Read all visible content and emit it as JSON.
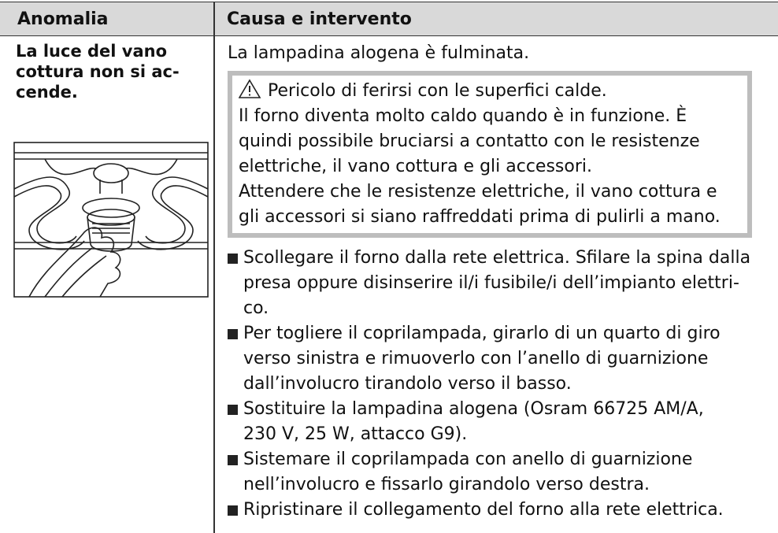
{
  "table": {
    "header": {
      "col1": "Anomalia",
      "col2": "Causa e intervento"
    },
    "rows": [
      {
        "anomaly": [
          "La luce del vano",
          "cottura non si ac-",
          "cende."
        ],
        "cause": "La lampadina alogena è fulminata.",
        "warning": {
          "title": "Pericolo di ferirsi con le superfici calde.",
          "lines": [
            "Il forno diventa molto caldo quando è in funzione. È",
            "quindi possibile bruciarsi a contatto con le resistenze",
            "elettriche, il vano cottura e gli accessori.",
            "Attendere che le resistenze elettriche, il vano cottura e",
            "gli accessori si siano raffreddati prima di pulirli a mano."
          ]
        },
        "steps": [
          [
            "Scollegare il forno dalla rete elettrica. Sfilare la spina dalla",
            "presa oppure disinserire il/i fusibile/i dell’impianto elettri-",
            "co."
          ],
          [
            "Per togliere il coprilampada, girarlo di un quarto di giro",
            "verso sinistra e rimuoverlo con l’anello di guarnizione",
            "dall’involucro tirandolo verso il basso."
          ],
          [
            "Sostituire la lampadina alogena (Osram 66725 AM/A,",
            "230 V, 25 W, attacco G9)."
          ],
          [
            "Sistemare il coprilampada con anello di guarnizione",
            "nell’involucro e fissarlo girandolo verso destra."
          ],
          [
            "Ripristinare il collegamento del forno alla rete elettrica."
          ]
        ]
      }
    ]
  }
}
